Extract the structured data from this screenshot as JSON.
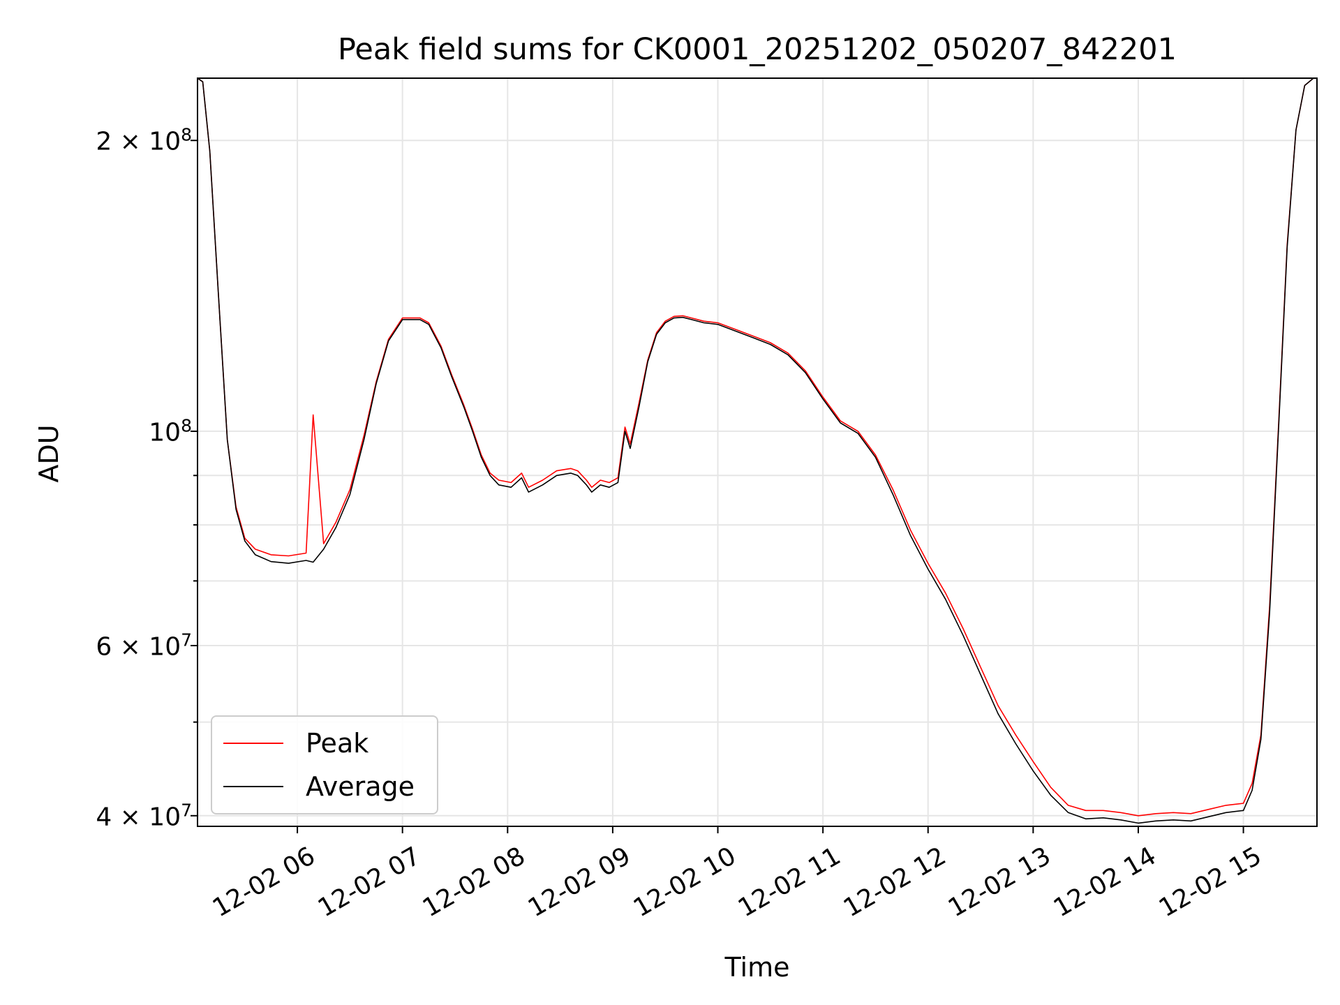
{
  "chart_data": {
    "type": "line",
    "title": "Peak field sums for CK0001_20251202_050207_842201",
    "xlabel": "Time",
    "ylabel": "ADU",
    "yscale": "log",
    "ylim": [
      39000000,
      232000000
    ],
    "xlim": [
      "2025-12-02 05:03",
      "2025-12-02 15:42"
    ],
    "x_ticks": [
      "12-02 06",
      "12-02 07",
      "12-02 08",
      "12-02 09",
      "12-02 10",
      "12-02 11",
      "12-02 12",
      "12-02 13",
      "12-02 14",
      "12-02 15"
    ],
    "y_tick_labels": [
      {
        "value": 200000000,
        "mantissa": "2",
        "exp": "8"
      },
      {
        "value": 100000000,
        "mantissa": "",
        "exp": "8"
      },
      {
        "value": 60000000,
        "mantissa": "6",
        "exp": "7"
      },
      {
        "value": 40000000,
        "mantissa": "4",
        "exp": "7"
      }
    ],
    "grid": true,
    "legend_position": "lower-left",
    "series": [
      {
        "name": "Peak",
        "color": "#ff0000"
      },
      {
        "name": "Average",
        "color": "#000000"
      }
    ],
    "x": [
      "2025-12-02 05:03",
      "2025-12-02 05:06",
      "2025-12-02 05:10",
      "2025-12-02 05:15",
      "2025-12-02 05:20",
      "2025-12-02 05:25",
      "2025-12-02 05:30",
      "2025-12-02 05:36",
      "2025-12-02 05:45",
      "2025-12-02 05:55",
      "2025-12-02 06:05",
      "2025-12-02 06:09",
      "2025-12-02 06:15",
      "2025-12-02 06:22",
      "2025-12-02 06:30",
      "2025-12-02 06:38",
      "2025-12-02 06:45",
      "2025-12-02 06:52",
      "2025-12-02 07:00",
      "2025-12-02 07:10",
      "2025-12-02 07:15",
      "2025-12-02 07:22",
      "2025-12-02 07:28",
      "2025-12-02 07:35",
      "2025-12-02 07:40",
      "2025-12-02 07:45",
      "2025-12-02 07:50",
      "2025-12-02 07:55",
      "2025-12-02 08:02",
      "2025-12-02 08:08",
      "2025-12-02 08:12",
      "2025-12-02 08:20",
      "2025-12-02 08:28",
      "2025-12-02 08:36",
      "2025-12-02 08:40",
      "2025-12-02 08:45",
      "2025-12-02 08:48",
      "2025-12-02 08:53",
      "2025-12-02 08:58",
      "2025-12-02 09:03",
      "2025-12-02 09:07",
      "2025-12-02 09:10",
      "2025-12-02 09:15",
      "2025-12-02 09:20",
      "2025-12-02 09:25",
      "2025-12-02 09:30",
      "2025-12-02 09:35",
      "2025-12-02 09:40",
      "2025-12-02 09:45",
      "2025-12-02 09:52",
      "2025-12-02 10:00",
      "2025-12-02 10:10",
      "2025-12-02 10:20",
      "2025-12-02 10:30",
      "2025-12-02 10:40",
      "2025-12-02 10:50",
      "2025-12-02 11:00",
      "2025-12-02 11:10",
      "2025-12-02 11:20",
      "2025-12-02 11:30",
      "2025-12-02 11:40",
      "2025-12-02 11:50",
      "2025-12-02 12:00",
      "2025-12-02 12:10",
      "2025-12-02 12:20",
      "2025-12-02 12:30",
      "2025-12-02 12:40",
      "2025-12-02 12:50",
      "2025-12-02 13:00",
      "2025-12-02 13:10",
      "2025-12-02 13:20",
      "2025-12-02 13:30",
      "2025-12-02 13:40",
      "2025-12-02 13:50",
      "2025-12-02 14:00",
      "2025-12-02 14:10",
      "2025-12-02 14:20",
      "2025-12-02 14:30",
      "2025-12-02 14:40",
      "2025-12-02 14:50",
      "2025-12-02 15:00",
      "2025-12-02 15:05",
      "2025-12-02 15:10",
      "2025-12-02 15:15",
      "2025-12-02 15:20",
      "2025-12-02 15:25",
      "2025-12-02 15:30",
      "2025-12-02 15:35",
      "2025-12-02 15:40"
    ],
    "average": [
      232000000,
      230000000,
      195000000,
      138000000,
      98000000,
      83000000,
      77000000,
      74500000,
      73300000,
      73000000,
      73500000,
      73200000,
      75500000,
      79500000,
      86000000,
      98000000,
      112000000,
      124000000,
      130500000,
      130500000,
      129000000,
      122000000,
      114000000,
      106000000,
      100000000,
      94000000,
      90000000,
      88000000,
      87500000,
      89500000,
      86500000,
      88000000,
      90000000,
      90500000,
      90000000,
      88000000,
      86500000,
      88000000,
      87500000,
      88500000,
      100000000,
      96000000,
      106000000,
      118000000,
      126000000,
      129500000,
      131000000,
      131200000,
      130500000,
      129500000,
      129000000,
      127000000,
      125000000,
      123000000,
      120000000,
      115000000,
      108000000,
      102000000,
      99500000,
      94000000,
      86000000,
      78000000,
      72000000,
      67000000,
      61500000,
      56000000,
      51000000,
      47500000,
      44500000,
      42000000,
      40300000,
      39700000,
      39800000,
      39600000,
      39300000,
      39500000,
      39600000,
      39500000,
      39900000,
      40300000,
      40500000,
      42500000,
      48000000,
      65000000,
      100000000,
      155000000,
      205000000,
      228000000,
      232000000
    ],
    "peak": [
      232000000,
      230000000,
      195000000,
      138000000,
      98000000,
      83500000,
      77500000,
      75500000,
      74500000,
      74300000,
      74800000,
      104000000,
      76500000,
      80500000,
      87000000,
      99000000,
      112500000,
      124500000,
      131000000,
      131000000,
      129500000,
      122500000,
      114500000,
      106500000,
      100500000,
      94500000,
      90500000,
      89000000,
      88500000,
      90500000,
      87500000,
      89000000,
      91000000,
      91500000,
      91000000,
      89000000,
      87500000,
      89000000,
      88500000,
      89500000,
      101000000,
      97000000,
      107000000,
      118500000,
      126500000,
      130000000,
      131500000,
      131700000,
      131000000,
      130000000,
      129500000,
      127500000,
      125500000,
      123500000,
      120500000,
      115500000,
      108500000,
      102500000,
      100000000,
      94500000,
      87000000,
      79000000,
      73000000,
      68000000,
      62500000,
      57000000,
      52000000,
      48500000,
      45500000,
      42800000,
      41000000,
      40500000,
      40500000,
      40300000,
      40000000,
      40200000,
      40300000,
      40200000,
      40600000,
      41000000,
      41200000,
      43200000,
      48500000,
      66000000,
      101000000,
      156000000,
      205000000,
      228000000,
      232000000
    ]
  }
}
